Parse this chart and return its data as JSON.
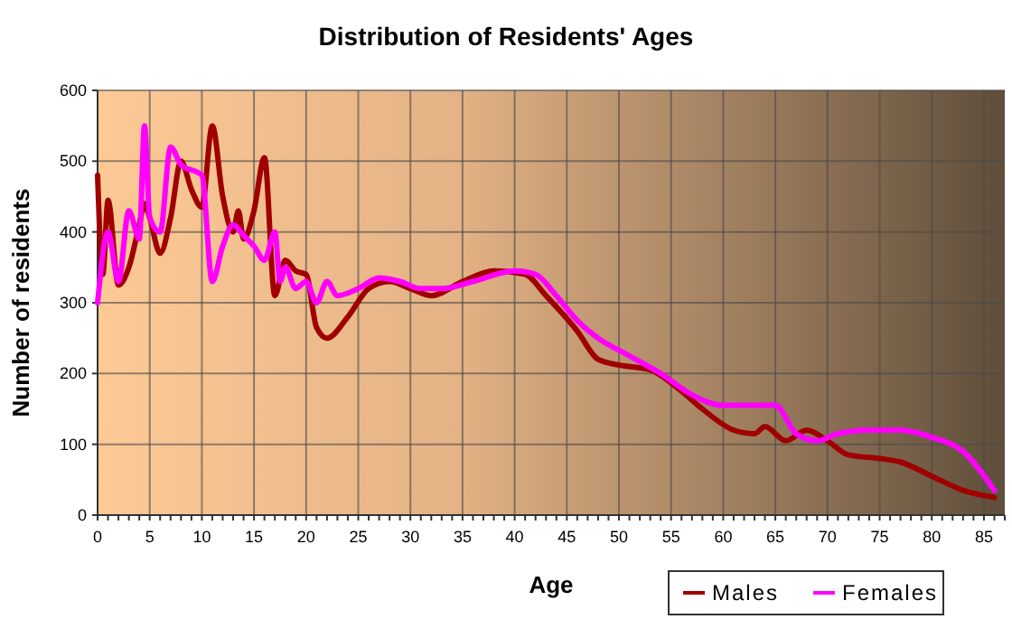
{
  "chart_data": {
    "type": "line",
    "title": "Distribution of Residents' Ages",
    "xlabel": "Age",
    "ylabel": "Number of residents",
    "xlim": [
      0,
      87
    ],
    "xticks": [
      0,
      5,
      10,
      15,
      20,
      25,
      30,
      35,
      40,
      45,
      50,
      55,
      60,
      65,
      70,
      75,
      80,
      85
    ],
    "ylim": [
      0,
      600
    ],
    "yticks": [
      0,
      100,
      200,
      300,
      400,
      500,
      600
    ],
    "grid": true,
    "legend": "bottom right",
    "line_style": "solid",
    "marker": "none",
    "series": [
      {
        "name": "Males",
        "color": "#a00000",
        "x": [
          0,
          0.5,
          1,
          2,
          3,
          4,
          4.5,
          5,
          6,
          7,
          8,
          9,
          10,
          11,
          12,
          13,
          13.5,
          14,
          15,
          16,
          17,
          18,
          19,
          20,
          21,
          22,
          24,
          26,
          28,
          30,
          32,
          35,
          38,
          41,
          43,
          46,
          48,
          50,
          53,
          56,
          58,
          61,
          63,
          64,
          66,
          68,
          70,
          72,
          75,
          77,
          80,
          83,
          86
        ],
        "values": [
          480,
          340,
          445,
          325,
          350,
          410,
          440,
          420,
          370,
          420,
          500,
          460,
          435,
          550,
          450,
          400,
          430,
          390,
          430,
          505,
          310,
          360,
          345,
          340,
          265,
          250,
          280,
          320,
          330,
          320,
          310,
          330,
          345,
          340,
          310,
          260,
          220,
          212,
          205,
          175,
          150,
          120,
          115,
          125,
          105,
          120,
          105,
          85,
          80,
          75,
          55,
          35,
          25
        ]
      },
      {
        "name": "Females",
        "color": "#ff00ff",
        "x": [
          0,
          1,
          2,
          3,
          4,
          4.5,
          5,
          6,
          7,
          8,
          10,
          11,
          12,
          13,
          14,
          15,
          16,
          17,
          17.5,
          18,
          19,
          20,
          21,
          22,
          23,
          25,
          27,
          29,
          31,
          33,
          36,
          40,
          42,
          44,
          46,
          48,
          51,
          54,
          57,
          60,
          63,
          65,
          67,
          69,
          71,
          74,
          77,
          80,
          83,
          86
        ],
        "values": [
          300,
          400,
          330,
          430,
          390,
          550,
          420,
          400,
          520,
          495,
          480,
          330,
          380,
          410,
          395,
          380,
          360,
          400,
          330,
          350,
          320,
          330,
          300,
          330,
          310,
          320,
          335,
          330,
          320,
          320,
          330,
          345,
          340,
          310,
          275,
          250,
          225,
          200,
          170,
          155,
          155,
          155,
          115,
          105,
          115,
          120,
          120,
          110,
          90,
          35
        ]
      }
    ]
  }
}
